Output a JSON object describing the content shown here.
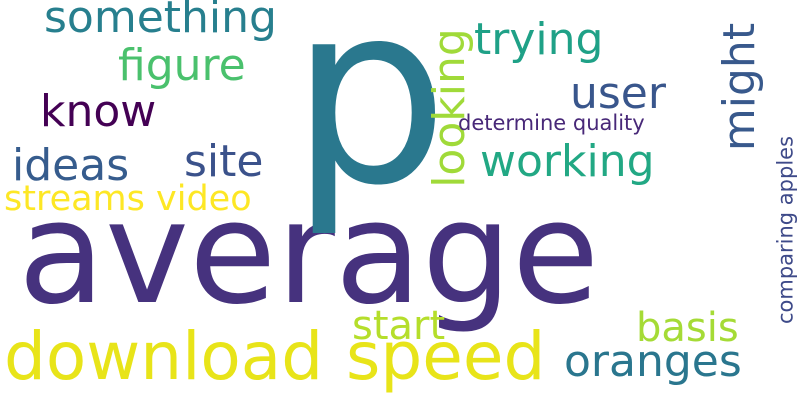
{
  "words": [
    {
      "text": "average",
      "color": "#46327e",
      "orientation": "horizontal"
    },
    {
      "text": "p",
      "color": "#2a788e",
      "orientation": "horizontal"
    },
    {
      "text": "download",
      "color": "#e8e419",
      "orientation": "horizontal"
    },
    {
      "text": "speed",
      "color": "#e8e419",
      "orientation": "horizontal"
    },
    {
      "text": "something",
      "color": "#277f8e",
      "orientation": "horizontal"
    },
    {
      "text": "figure",
      "color": "#4ac16d",
      "orientation": "horizontal"
    },
    {
      "text": "know",
      "color": "#440154",
      "orientation": "horizontal"
    },
    {
      "text": "ideas",
      "color": "#365c8d",
      "orientation": "horizontal"
    },
    {
      "text": "site",
      "color": "#3b528b",
      "orientation": "horizontal"
    },
    {
      "text": "streams video",
      "color": "#fde725",
      "orientation": "horizontal"
    },
    {
      "text": "looking",
      "color": "#a0da39",
      "orientation": "vertical"
    },
    {
      "text": "trying",
      "color": "#1fa187",
      "orientation": "horizontal"
    },
    {
      "text": "user",
      "color": "#39568c",
      "orientation": "horizontal"
    },
    {
      "text": "might",
      "color": "#38598c",
      "orientation": "vertical"
    },
    {
      "text": "working",
      "color": "#22a884",
      "orientation": "horizontal"
    },
    {
      "text": "determine quality",
      "color": "#482878",
      "orientation": "horizontal"
    },
    {
      "text": "comparing apples",
      "color": "#3e4a89",
      "orientation": "vertical"
    },
    {
      "text": "start",
      "color": "#b5de2b",
      "orientation": "horizontal"
    },
    {
      "text": "basis",
      "color": "#a5db36",
      "orientation": "horizontal"
    },
    {
      "text": "oranges",
      "color": "#2a768e",
      "orientation": "horizontal"
    }
  ]
}
